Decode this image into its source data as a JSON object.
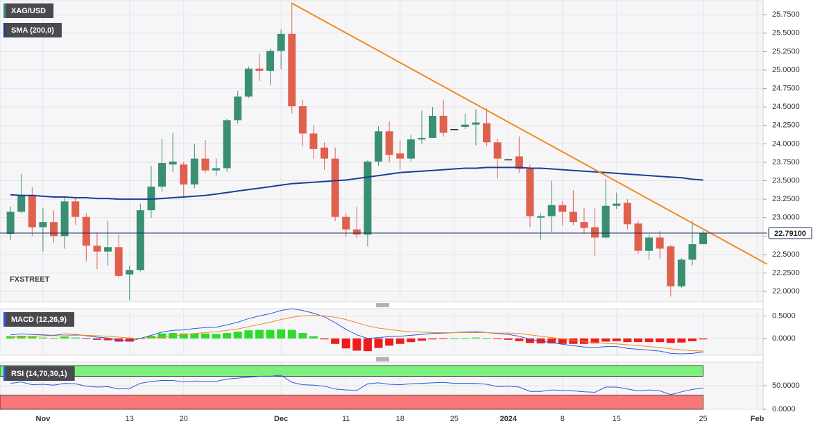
{
  "chart_data": [
    {
      "type": "candlestick",
      "title": "XAG/USD",
      "color_up": "#3a8f73",
      "color_down": "#e0604e",
      "color_flat": "#1a1a1a",
      "open": [
        22.78,
        23.08,
        23.31,
        22.87,
        22.94,
        22.75,
        23.22,
        23.01,
        22.62,
        22.54,
        22.6,
        22.23,
        22.29,
        23.1,
        23.42,
        23.72,
        23.72,
        23.45,
        23.8,
        23.64,
        23.67,
        24.32,
        24.64,
        25.02,
        24.99,
        25.26,
        25.49,
        24.51,
        24.14,
        23.95,
        23.8,
        23.01,
        22.84,
        22.77,
        23.76,
        24.17,
        23.87,
        23.8,
        24.06,
        24.08,
        24.38,
        24.2,
        24.23,
        24.26,
        24.28,
        24.02,
        23.79,
        23.83,
        23.66,
        23.0,
        23.02,
        23.17,
        23.08,
        22.94,
        22.87,
        22.73,
        23.16,
        23.2,
        22.92,
        22.55,
        22.73,
        22.61,
        22.07,
        22.43,
        22.64
      ],
      "high": [
        23.15,
        23.59,
        23.41,
        23.13,
        23.1,
        23.28,
        23.28,
        23.06,
        22.8,
        22.96,
        22.77,
        22.35,
        23.19,
        23.7,
        24.07,
        24.15,
        23.75,
        24.0,
        24.05,
        23.8,
        24.34,
        24.72,
        25.05,
        25.22,
        25.29,
        25.55,
        25.91,
        24.6,
        24.25,
        24.02,
        23.95,
        23.06,
        23.15,
        23.78,
        24.24,
        24.3,
        24.05,
        24.12,
        24.45,
        24.5,
        24.6,
        24.2,
        24.41,
        24.47,
        24.48,
        24.07,
        23.79,
        24.1,
        23.72,
        23.06,
        23.5,
        23.22,
        23.37,
        23.13,
        23.13,
        23.52,
        23.34,
        23.25,
        22.96,
        22.77,
        22.82,
        22.63,
        22.45,
        22.96,
        22.82
      ],
      "low": [
        22.7,
        23.06,
        22.75,
        22.54,
        22.66,
        22.58,
        22.9,
        22.41,
        22.3,
        22.35,
        22.19,
        21.88,
        22.27,
        23.0,
        23.35,
        23.62,
        23.28,
        23.4,
        23.6,
        23.57,
        23.62,
        24.27,
        24.62,
        24.85,
        24.8,
        25.01,
        24.41,
        23.97,
        23.8,
        23.65,
        22.95,
        22.74,
        22.72,
        22.61,
        23.7,
        23.75,
        23.65,
        23.76,
        24.0,
        24.08,
        24.1,
        24.2,
        24.2,
        23.98,
        23.97,
        23.53,
        23.79,
        23.61,
        22.87,
        22.7,
        22.8,
        22.9,
        22.9,
        22.78,
        22.48,
        22.72,
        23.12,
        22.84,
        22.51,
        22.43,
        22.44,
        21.93,
        22.05,
        22.35,
        22.64
      ],
      "close": [
        23.08,
        23.31,
        22.87,
        22.94,
        22.75,
        23.22,
        23.01,
        22.62,
        22.54,
        22.6,
        22.21,
        22.29,
        23.1,
        23.42,
        23.74,
        23.76,
        23.45,
        23.8,
        23.64,
        23.67,
        24.32,
        24.64,
        25.02,
        24.99,
        25.26,
        25.49,
        24.51,
        24.14,
        23.93,
        23.8,
        23.01,
        22.84,
        22.77,
        23.76,
        24.17,
        23.85,
        23.8,
        24.06,
        24.08,
        24.38,
        24.15,
        24.2,
        24.26,
        24.29,
        24.02,
        23.8,
        23.79,
        23.66,
        23.02,
        23.02,
        23.17,
        23.08,
        22.94,
        22.86,
        22.73,
        23.16,
        23.19,
        22.91,
        22.55,
        22.73,
        22.58,
        22.07,
        22.43,
        22.64,
        22.79
      ],
      "series": [
        {
          "name": "SMA (200,0)",
          "color": "#1a3f96",
          "values": [
            23.31,
            23.3,
            23.3,
            23.29,
            23.28,
            23.28,
            23.27,
            23.27,
            23.26,
            23.26,
            23.25,
            23.25,
            23.25,
            23.25,
            23.26,
            23.27,
            23.28,
            23.29,
            23.3,
            23.32,
            23.34,
            23.36,
            23.38,
            23.4,
            23.42,
            23.44,
            23.46,
            23.47,
            23.48,
            23.49,
            23.5,
            23.51,
            23.53,
            23.55,
            23.57,
            23.59,
            23.61,
            23.62,
            23.63,
            23.64,
            23.65,
            23.66,
            23.67,
            23.67,
            23.68,
            23.68,
            23.68,
            23.68,
            23.67,
            23.67,
            23.66,
            23.65,
            23.64,
            23.63,
            23.62,
            23.61,
            23.6,
            23.59,
            23.58,
            23.57,
            23.56,
            23.55,
            23.54,
            23.52,
            23.51
          ]
        }
      ],
      "trendline": {
        "color": "#f28a1d",
        "x": [
          25.95,
          69.9
        ],
        "values": [
          25.91,
          22.37
        ]
      },
      "last_price": {
        "value": 22.791,
        "label": "22.79100",
        "color": "#1a2a5a"
      },
      "watermark": [
        "FX",
        "STREET"
      ],
      "ylim": [
        21.86,
        25.94
      ],
      "yticks": [
        {
          "value": 22.0,
          "label": "22.0000"
        },
        {
          "value": 22.25,
          "label": "22.2500"
        },
        {
          "value": 22.5,
          "label": "22.5000"
        },
        {
          "value": 22.75,
          "label": "22.7500"
        },
        {
          "value": 23.0,
          "label": "23.0000"
        },
        {
          "value": 23.25,
          "label": "23.2500"
        },
        {
          "value": 23.5,
          "label": "23.5000"
        },
        {
          "value": 23.75,
          "label": "23.7500"
        },
        {
          "value": 24.0,
          "label": "24.0000"
        },
        {
          "value": 24.25,
          "label": "24.2500"
        },
        {
          "value": 24.5,
          "label": "24.5000"
        },
        {
          "value": 24.75,
          "label": "24.7500"
        },
        {
          "value": 25.0,
          "label": "25.0000"
        },
        {
          "value": 25.25,
          "label": "25.2500"
        },
        {
          "value": 25.5,
          "label": "25.5000"
        },
        {
          "value": 25.75,
          "label": "25.7500"
        }
      ],
      "xlim": [
        -0.97,
        69.54
      ],
      "xticks": [
        {
          "value": 3,
          "label": "Nov"
        },
        {
          "value": 11,
          "label": "13"
        },
        {
          "value": 16,
          "label": "20"
        },
        {
          "value": 25,
          "label": "Dec"
        },
        {
          "value": 31,
          "label": "11"
        },
        {
          "value": 36,
          "label": "18"
        },
        {
          "value": 41,
          "label": "25"
        },
        {
          "value": 46,
          "label": "2024"
        },
        {
          "value": 51,
          "label": "8"
        },
        {
          "value": 56,
          "label": "15"
        },
        {
          "value": 64,
          "label": "25"
        },
        {
          "value": 69,
          "label": "Feb"
        }
      ],
      "grid": true
    },
    {
      "type": "macd",
      "title": "MACD (12,26,9)",
      "histogram": {
        "color_up": "#2bdc2b",
        "color_down": "#ee1c1c",
        "values": [
          0.05,
          0.06,
          0.04,
          0.02,
          0.01,
          0.04,
          0.02,
          -0.01,
          -0.03,
          -0.04,
          -0.07,
          -0.07,
          0.0,
          0.06,
          0.11,
          0.12,
          0.11,
          0.11,
          0.11,
          0.1,
          0.12,
          0.15,
          0.18,
          0.19,
          0.19,
          0.2,
          0.19,
          0.12,
          0.05,
          -0.02,
          -0.12,
          -0.22,
          -0.27,
          -0.28,
          -0.21,
          -0.16,
          -0.12,
          -0.08,
          -0.05,
          -0.02,
          -0.01,
          0.0,
          0.01,
          0.02,
          0.0,
          -0.01,
          -0.03,
          -0.06,
          -0.1,
          -0.11,
          -0.11,
          -0.12,
          -0.12,
          -0.12,
          -0.11,
          -0.07,
          -0.06,
          -0.08,
          -0.08,
          -0.08,
          -0.08,
          -0.1,
          -0.09,
          -0.06,
          -0.02
        ]
      },
      "series": [
        {
          "color": "#2b5ad8",
          "values": [
            0.08,
            0.1,
            0.09,
            0.08,
            0.07,
            0.1,
            0.09,
            0.06,
            0.03,
            0.01,
            -0.04,
            -0.06,
            0.0,
            0.07,
            0.14,
            0.18,
            0.19,
            0.22,
            0.24,
            0.25,
            0.3,
            0.36,
            0.44,
            0.5,
            0.55,
            0.62,
            0.66,
            0.62,
            0.56,
            0.48,
            0.35,
            0.2,
            0.08,
            0.0,
            0.02,
            0.04,
            0.05,
            0.07,
            0.09,
            0.11,
            0.12,
            0.13,
            0.14,
            0.15,
            0.13,
            0.11,
            0.09,
            0.05,
            -0.02,
            -0.06,
            -0.09,
            -0.13,
            -0.16,
            -0.19,
            -0.2,
            -0.18,
            -0.18,
            -0.22,
            -0.24,
            -0.26,
            -0.28,
            -0.33,
            -0.34,
            -0.33,
            -0.3
          ]
        },
        {
          "color": "#f28a1d",
          "values": [
            0.03,
            0.04,
            0.05,
            0.06,
            0.06,
            0.06,
            0.07,
            0.07,
            0.06,
            0.05,
            0.03,
            0.01,
            0.0,
            0.01,
            0.03,
            0.06,
            0.08,
            0.11,
            0.13,
            0.15,
            0.18,
            0.21,
            0.26,
            0.31,
            0.36,
            0.42,
            0.47,
            0.5,
            0.51,
            0.5,
            0.47,
            0.42,
            0.35,
            0.28,
            0.23,
            0.2,
            0.17,
            0.15,
            0.14,
            0.13,
            0.13,
            0.13,
            0.13,
            0.13,
            0.13,
            0.12,
            0.12,
            0.11,
            0.08,
            0.05,
            0.02,
            -0.01,
            -0.04,
            -0.07,
            -0.09,
            -0.11,
            -0.12,
            -0.14,
            -0.16,
            -0.18,
            -0.2,
            -0.23,
            -0.25,
            -0.27,
            -0.28
          ]
        }
      ],
      "ylim": [
        -0.37,
        0.66
      ],
      "yticks": [
        {
          "value": 0.5,
          "label": "0.5000"
        },
        {
          "value": 0,
          "label": "0.0000"
        }
      ],
      "grid": true
    },
    {
      "type": "rsi",
      "title": "RSI (14,70,30,1)",
      "overbought": 70,
      "oversold": 30,
      "overbought_color": "#7cf07c",
      "oversold_color": "#f87878",
      "series": [
        {
          "color": "#2b5ad8",
          "values": [
            55,
            58,
            52,
            53,
            51,
            55,
            54,
            49,
            47,
            48,
            43,
            44,
            55,
            59,
            61,
            61,
            58,
            60,
            59,
            59,
            64,
            66,
            68,
            70,
            70,
            72,
            57,
            52,
            51,
            49,
            43,
            41,
            40,
            54,
            56,
            53,
            52,
            54,
            55,
            56,
            57,
            55,
            55,
            55,
            53,
            48,
            49,
            47,
            38,
            38,
            41,
            40,
            39,
            37,
            36,
            47,
            47,
            43,
            39,
            41,
            39,
            31,
            37,
            42,
            45
          ]
        }
      ],
      "ylim": [
        0,
        100
      ],
      "yticks": [
        {
          "value": 50,
          "label": "50.0000"
        },
        {
          "value": 0,
          "label": "0.0000"
        }
      ],
      "grid": true
    }
  ]
}
